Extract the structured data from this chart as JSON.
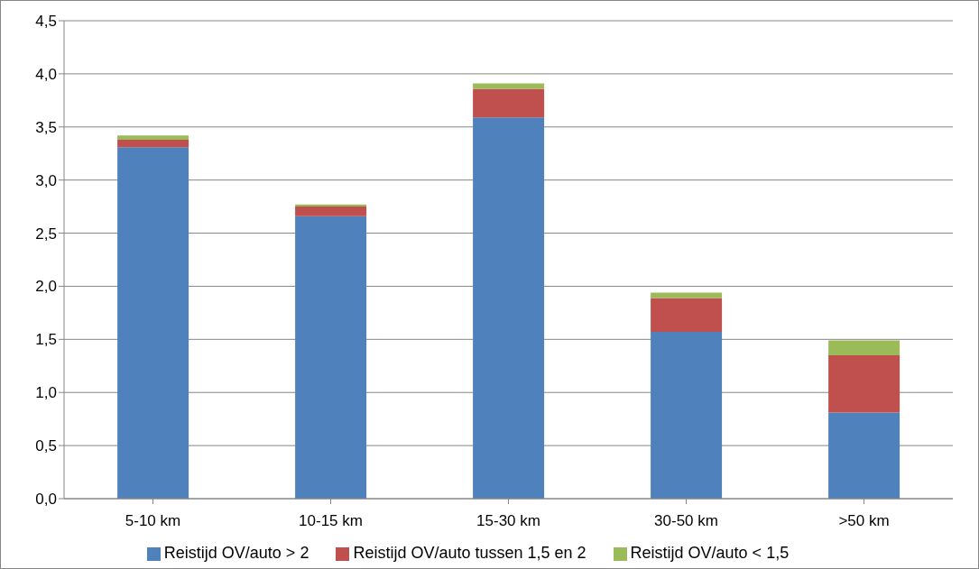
{
  "chart_data": {
    "type": "bar",
    "stacked": true,
    "categories": [
      "5-10 km",
      "10-15 km",
      "15-30 km",
      "30-50 km",
      ">50 km"
    ],
    "series": [
      {
        "name": "Reistijd OV/auto > 2",
        "color": "#4f81bd",
        "values": [
          3.31,
          2.66,
          3.59,
          1.57,
          0.81
        ]
      },
      {
        "name": "Reistijd OV/auto tussen 1,5 en 2",
        "color": "#c0504d",
        "values": [
          0.07,
          0.09,
          0.27,
          0.32,
          0.54
        ]
      },
      {
        "name": "Reistijd OV/auto < 1,5",
        "color": "#9bbb59",
        "values": [
          0.04,
          0.02,
          0.05,
          0.05,
          0.14
        ]
      }
    ],
    "ylim": [
      0,
      4.5
    ],
    "yticks": [
      {
        "value": 0,
        "label": "0,0"
      },
      {
        "value": 0.5,
        "label": "0,5"
      },
      {
        "value": 1,
        "label": "1,0"
      },
      {
        "value": 1.5,
        "label": "1,5"
      },
      {
        "value": 2,
        "label": "2,0"
      },
      {
        "value": 2.5,
        "label": "2,5"
      },
      {
        "value": 3,
        "label": "3,0"
      },
      {
        "value": 3.5,
        "label": "3,5"
      },
      {
        "value": 4,
        "label": "4,0"
      },
      {
        "value": 4.5,
        "label": "4,5"
      }
    ],
    "grid": "y",
    "legend": "bottom"
  }
}
